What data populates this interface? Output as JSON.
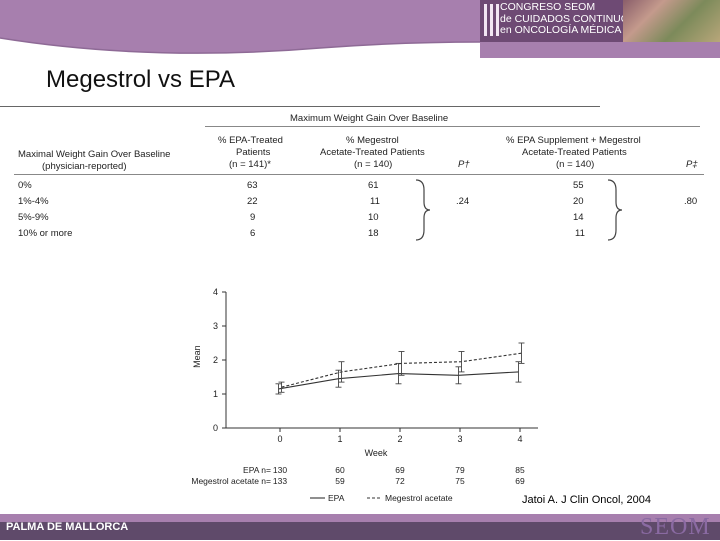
{
  "slide": {
    "title": "Megestrol vs EPA",
    "citation": "Jatoi A. J Clin Oncol, 2004",
    "footer_left": "PALMA DE MALLORCA",
    "logo": "SEOM",
    "congreso_lines": [
      "CONGRESO SEOM",
      "de CUIDADOS CONTINUOS",
      "en ONCOLOGÍA MÉDICA"
    ]
  },
  "table": {
    "super_header": "Maximum Weight Gain Over Baseline",
    "row_header": [
      "Maximal Weight Gain Over Baseline",
      "(physician-reported)"
    ],
    "col1": [
      "% EPA-Treated",
      "Patients",
      "(n = 141)*"
    ],
    "col2": [
      "% Megestrol",
      "Acetate-Treated Patients",
      "(n = 140)"
    ],
    "p1": "P†",
    "col3": [
      "% EPA Supplement + Megestrol",
      "Acetate-Treated Patients",
      "(n = 140)"
    ],
    "p2": "P‡",
    "rows": [
      {
        "label": "0%",
        "epa": "63",
        "meg": "61",
        "combo": "55"
      },
      {
        "label": "1%-4%",
        "epa": "22",
        "meg": "11",
        "combo": "20"
      },
      {
        "label": "5%-9%",
        "epa": "9",
        "meg": "10",
        "combo": "14"
      },
      {
        "label": "10% or more",
        "epa": "6",
        "meg": "18",
        "combo": "11"
      }
    ],
    "p1_value": ".24",
    "p2_value": ".80"
  },
  "chart_data": {
    "type": "line",
    "x": [
      0,
      1,
      2,
      3,
      4
    ],
    "xlabel": "Week",
    "ylabel": "Mean",
    "ylim": [
      0,
      4
    ],
    "yticks": [
      "0",
      "1",
      "2",
      "3",
      "4"
    ],
    "xticks": [
      "0",
      "1",
      "2",
      "3",
      "4"
    ],
    "series": [
      {
        "name": "EPA",
        "values": [
          1.15,
          1.45,
          1.6,
          1.55,
          1.65
        ],
        "err": [
          0.15,
          0.25,
          0.3,
          0.25,
          0.3
        ],
        "dash": false
      },
      {
        "name": "Megestrol acetate",
        "values": [
          1.2,
          1.65,
          1.9,
          1.95,
          2.2
        ],
        "err": [
          0.15,
          0.3,
          0.35,
          0.3,
          0.3
        ],
        "dash": true
      }
    ],
    "n_rows": [
      {
        "label": "EPA n=",
        "values": [
          "130",
          "60",
          "69",
          "79",
          "85"
        ]
      },
      {
        "label": "Megestrol acetate n=",
        "values": [
          "133",
          "59",
          "72",
          "75",
          "69"
        ]
      }
    ]
  }
}
